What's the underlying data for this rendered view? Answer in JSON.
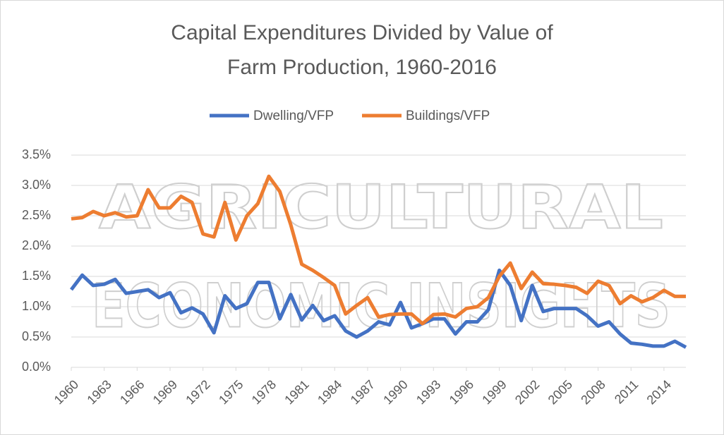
{
  "chart_data": {
    "type": "line",
    "title": "Capital Expenditures Divided by Value of Farm Production, 1960-2016",
    "watermark": [
      "AGRICULTURAL",
      "ECONOMIC INSIGHTS"
    ],
    "x": [
      1960,
      1961,
      1962,
      1963,
      1964,
      1965,
      1966,
      1967,
      1968,
      1969,
      1970,
      1971,
      1972,
      1973,
      1974,
      1975,
      1976,
      1977,
      1978,
      1979,
      1980,
      1981,
      1982,
      1983,
      1984,
      1985,
      1986,
      1987,
      1988,
      1989,
      1990,
      1991,
      1992,
      1993,
      1994,
      1995,
      1996,
      1997,
      1998,
      1999,
      2000,
      2001,
      2002,
      2003,
      2004,
      2005,
      2006,
      2007,
      2008,
      2009,
      2010,
      2011,
      2012,
      2013,
      2014,
      2015,
      2016
    ],
    "xlim": [
      1960,
      2016
    ],
    "xticks": [
      1960,
      1963,
      1966,
      1969,
      1972,
      1975,
      1978,
      1981,
      1984,
      1987,
      1990,
      1993,
      1996,
      1999,
      2002,
      2005,
      2008,
      2011,
      2014
    ],
    "ylim": [
      0,
      3.5
    ],
    "yticks": [
      {
        "value": 0,
        "label": "0.0%"
      },
      {
        "value": 0.5,
        "label": "0.5%"
      },
      {
        "value": 1,
        "label": "1.0%"
      },
      {
        "value": 1.5,
        "label": "1.5%"
      },
      {
        "value": 2,
        "label": "2.0%"
      },
      {
        "value": 2.5,
        "label": "2.5%"
      },
      {
        "value": 3,
        "label": "3.0%"
      },
      {
        "value": 3.5,
        "label": "3.5%"
      }
    ],
    "grid": true,
    "legend": "top",
    "series": [
      {
        "name": "Dwelling/VFP",
        "color": "#4472c4",
        "values": [
          1.28,
          1.52,
          1.35,
          1.37,
          1.45,
          1.22,
          1.25,
          1.28,
          1.15,
          1.23,
          0.9,
          0.98,
          0.88,
          0.57,
          1.18,
          0.97,
          1.05,
          1.4,
          1.4,
          0.8,
          1.2,
          0.78,
          1.02,
          0.77,
          0.85,
          0.6,
          0.5,
          0.6,
          0.75,
          0.7,
          1.07,
          0.65,
          0.72,
          0.8,
          0.8,
          0.55,
          0.75,
          0.75,
          0.95,
          1.6,
          1.35,
          0.77,
          1.35,
          0.92,
          0.97,
          0.97,
          0.97,
          0.85,
          0.68,
          0.75,
          0.55,
          0.4,
          0.38,
          0.35,
          0.35,
          0.43,
          0.33
        ]
      },
      {
        "name": "Buildings/VFP",
        "color": "#ed7d31",
        "values": [
          2.45,
          2.47,
          2.57,
          2.5,
          2.55,
          2.48,
          2.5,
          2.93,
          2.63,
          2.63,
          2.82,
          2.72,
          2.2,
          2.15,
          2.72,
          2.1,
          2.5,
          2.7,
          3.15,
          2.9,
          2.35,
          1.7,
          1.6,
          1.48,
          1.35,
          0.88,
          1.02,
          1.15,
          0.83,
          0.87,
          0.88,
          0.88,
          0.72,
          0.87,
          0.88,
          0.83,
          0.97,
          1.0,
          1.15,
          1.5,
          1.72,
          1.3,
          1.57,
          1.38,
          1.37,
          1.35,
          1.32,
          1.22,
          1.42,
          1.35,
          1.05,
          1.18,
          1.08,
          1.15,
          1.27,
          1.17,
          1.17
        ]
      }
    ]
  }
}
